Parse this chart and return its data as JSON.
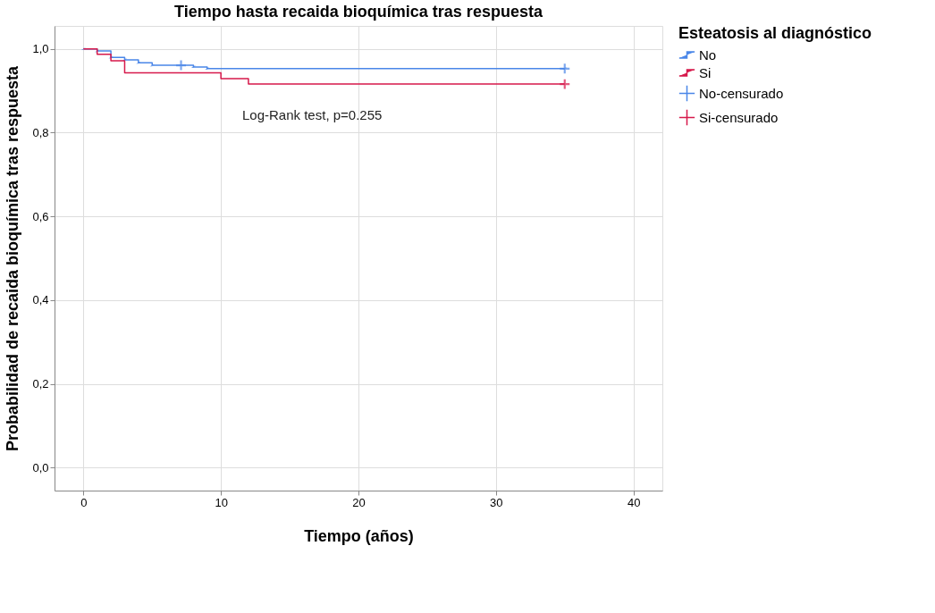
{
  "chart_data": {
    "type": "step",
    "title": "Tiempo hasta recaida bioquímica tras respuesta",
    "xlabel": "Tiempo (años)",
    "ylabel": "Probabilidad de recaida bioquímica tras respuesta",
    "legend_title": "Esteatosis al diagnóstico",
    "legend": "top right",
    "grid": true,
    "xlim": [
      -2.1,
      42.1
    ],
    "xticks": [
      0,
      10,
      20,
      30,
      40
    ],
    "ylim": [
      -0.055,
      1.055
    ],
    "yticks": [
      {
        "value": 0,
        "label": "0,0"
      },
      {
        "value": 0.2,
        "label": "0,2"
      },
      {
        "value": 0.4,
        "label": "0,4"
      },
      {
        "value": 0.6,
        "label": "0,6"
      },
      {
        "value": 0.8,
        "label": "0,8"
      },
      {
        "value": 1,
        "label": "1,0"
      }
    ],
    "annotations": [
      "Log-Rank test, p=0.255"
    ],
    "series": [
      {
        "name": "No",
        "color": "#4a86e8",
        "x": [
          0,
          1,
          2,
          3,
          4,
          5,
          8,
          9,
          35
        ],
        "values": [
          1,
          0.995,
          0.98,
          0.974,
          0.967,
          0.961,
          0.957,
          0.953,
          0.953
        ]
      },
      {
        "name": "Si",
        "color": "#d6194b",
        "x": [
          0,
          1,
          2,
          3,
          10,
          12,
          35
        ],
        "values": [
          1,
          0.987,
          0.972,
          0.943,
          0.929,
          0.916,
          0.916
        ]
      },
      {
        "name": "No-censurado",
        "type": "scatter",
        "marker": "cross",
        "color": "#4a86e8",
        "x": [
          7.1,
          35
        ],
        "values": [
          0.961,
          0.953
        ]
      },
      {
        "name": "Si-censurado",
        "type": "scatter",
        "marker": "cross",
        "color": "#d6194b",
        "x": [
          35
        ],
        "values": [
          0.916
        ]
      }
    ]
  }
}
